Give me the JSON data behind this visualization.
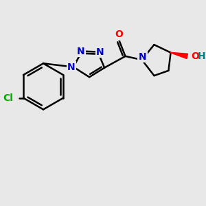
{
  "bg_color": "#e8e8e8",
  "bond_color": "#000000",
  "bond_width": 1.8,
  "N_color": "#0000cc",
  "O_color": "#ff0000",
  "Cl_color": "#00aa00",
  "OH_color": "#ff0000",
  "H_color": "#008080",
  "wedge_color": "#ff0000",
  "font_size_atom": 10,
  "figsize": [
    3.0,
    3.0
  ],
  "dpi": 100,
  "xlim": [
    20,
    290
  ],
  "ylim": [
    25,
    265
  ]
}
